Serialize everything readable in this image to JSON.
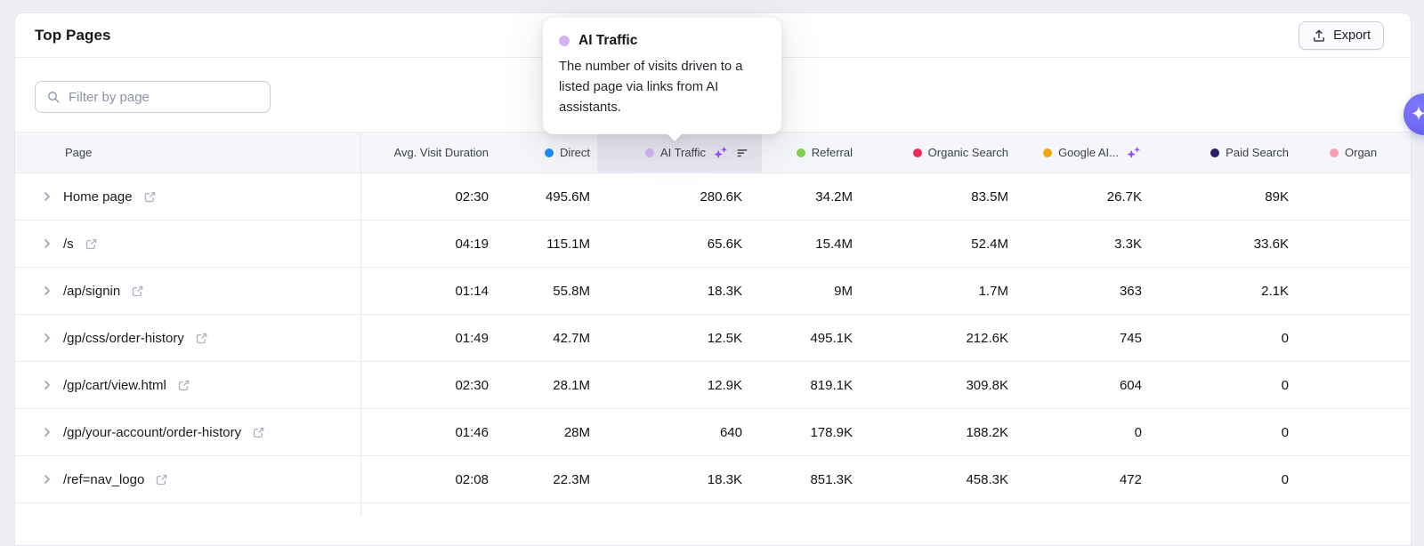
{
  "header": {
    "title": "Top Pages",
    "export_button": "Export",
    "export_icon": "upload-icon"
  },
  "filter": {
    "placeholder": "Filter by page",
    "icon": "search-icon"
  },
  "tooltip": {
    "title": "AI Traffic",
    "body": "The number of visits driven to a listed page via links from AI assistants.",
    "dot_color": "#d5b3f2"
  },
  "fab": {
    "icon": "sparkle-icon",
    "color": "#6b67f5"
  },
  "table": {
    "columns": [
      {
        "key": "page",
        "label": "Page"
      },
      {
        "key": "avg_visit_duration",
        "label": "Avg. Visit Duration"
      },
      {
        "key": "direct",
        "label": "Direct",
        "dot": "#1b8df5"
      },
      {
        "key": "ai_traffic",
        "label": "AI Traffic",
        "dot": "#d5b3f2",
        "selected": true,
        "icons": [
          "sparkles",
          "sort-desc"
        ]
      },
      {
        "key": "referral",
        "label": "Referral",
        "dot": "#83cf52"
      },
      {
        "key": "organic_search",
        "label": "Organic Search",
        "dot": "#ef2d56"
      },
      {
        "key": "google_ai",
        "label": "Google AI...",
        "dot": "#eda60f",
        "icons": [
          "sparkles"
        ]
      },
      {
        "key": "paid_search",
        "label": "Paid Search",
        "dot": "#2c1a63"
      },
      {
        "key": "organic_last",
        "label": "Organ",
        "dot": "#f8a0b0"
      }
    ],
    "rows": [
      {
        "page": "Home page",
        "avg_visit_duration": "02:30",
        "direct": "495.6M",
        "ai_traffic": "280.6K",
        "referral": "34.2M",
        "organic_search": "83.5M",
        "google_ai": "26.7K",
        "paid_search": "89K"
      },
      {
        "page": "/s",
        "avg_visit_duration": "04:19",
        "direct": "115.1M",
        "ai_traffic": "65.6K",
        "referral": "15.4M",
        "organic_search": "52.4M",
        "google_ai": "3.3K",
        "paid_search": "33.6K"
      },
      {
        "page": "/ap/signin",
        "avg_visit_duration": "01:14",
        "direct": "55.8M",
        "ai_traffic": "18.3K",
        "referral": "9M",
        "organic_search": "1.7M",
        "google_ai": "363",
        "paid_search": "2.1K"
      },
      {
        "page": "/gp/css/order-history",
        "avg_visit_duration": "01:49",
        "direct": "42.7M",
        "ai_traffic": "12.5K",
        "referral": "495.1K",
        "organic_search": "212.6K",
        "google_ai": "745",
        "paid_search": "0"
      },
      {
        "page": "/gp/cart/view.html",
        "avg_visit_duration": "02:30",
        "direct": "28.1M",
        "ai_traffic": "12.9K",
        "referral": "819.1K",
        "organic_search": "309.8K",
        "google_ai": "604",
        "paid_search": "0"
      },
      {
        "page": "/gp/your-account/order-history",
        "avg_visit_duration": "01:46",
        "direct": "28M",
        "ai_traffic": "640",
        "referral": "178.9K",
        "organic_search": "188.2K",
        "google_ai": "0",
        "paid_search": "0"
      },
      {
        "page": "/ref=nav_logo",
        "avg_visit_duration": "02:08",
        "direct": "22.3M",
        "ai_traffic": "18.3K",
        "referral": "851.3K",
        "organic_search": "458.3K",
        "google_ai": "472",
        "paid_search": "0"
      }
    ],
    "row_icons": [
      "chevron-right-icon",
      "external-link-icon"
    ]
  }
}
